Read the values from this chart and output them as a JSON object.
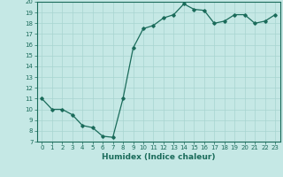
{
  "x": [
    0,
    1,
    2,
    3,
    4,
    5,
    6,
    7,
    8,
    9,
    10,
    11,
    12,
    13,
    14,
    15,
    16,
    17,
    18,
    19,
    20,
    21,
    22,
    23
  ],
  "y": [
    11,
    10,
    10,
    9.5,
    8.5,
    8.3,
    7.5,
    7.4,
    11.0,
    15.7,
    17.5,
    17.8,
    18.5,
    18.8,
    19.8,
    19.3,
    19.2,
    18.0,
    18.2,
    18.8,
    18.8,
    18.0,
    18.2,
    18.8
  ],
  "xlim": [
    -0.5,
    23.5
  ],
  "ylim": [
    7,
    20
  ],
  "yticks": [
    7,
    8,
    9,
    10,
    11,
    12,
    13,
    14,
    15,
    16,
    17,
    18,
    19,
    20
  ],
  "xticks": [
    0,
    1,
    2,
    3,
    4,
    5,
    6,
    7,
    8,
    9,
    10,
    11,
    12,
    13,
    14,
    15,
    16,
    17,
    18,
    19,
    20,
    21,
    22,
    23
  ],
  "xlabel": "Humidex (Indice chaleur)",
  "line_color": "#1a6b5a",
  "marker": "D",
  "marker_size": 1.8,
  "bg_color": "#c5e8e5",
  "grid_color": "#a8d4d0",
  "tick_fontsize": 5.0,
  "xlabel_fontsize": 6.5,
  "line_width": 0.9
}
